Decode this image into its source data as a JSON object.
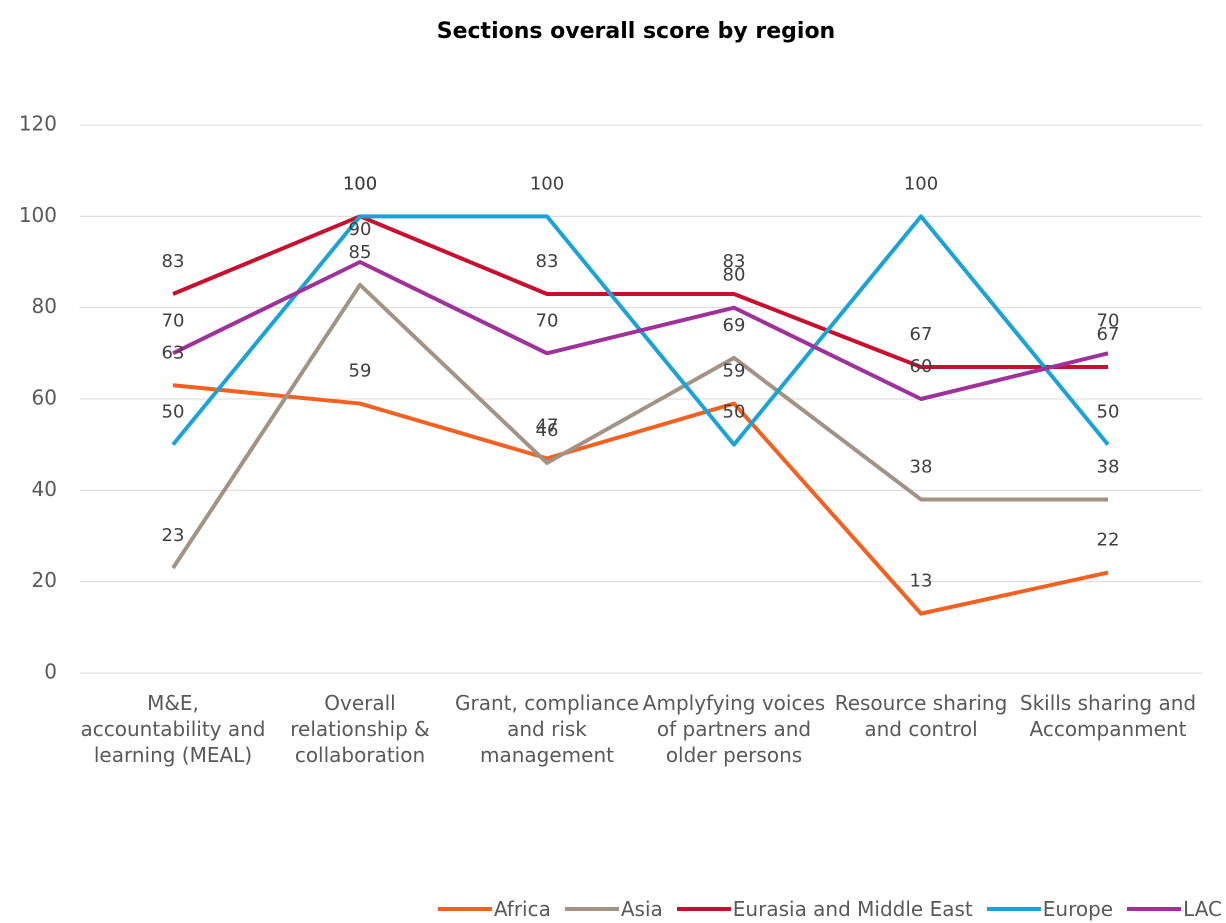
{
  "chart_data": {
    "type": "line",
    "title": "Sections overall score by region",
    "categories": [
      "M&E, accountability and learning (MEAL)",
      "Overall relationship & collaboration",
      "Grant, compliance and risk management",
      "Amplyfying voices of partners and older persons",
      "Resource sharing and control",
      "Skills sharing and Accompanment"
    ],
    "series": [
      {
        "name": "Africa",
        "color": "#f26122",
        "values": [
          63,
          59,
          47,
          59,
          13,
          22
        ]
      },
      {
        "name": "Asia",
        "color": "#a39382",
        "values": [
          23,
          85,
          46,
          69,
          38,
          38
        ]
      },
      {
        "name": "Eurasia and Middle East",
        "color": "#c8102e",
        "values": [
          83,
          100,
          83,
          83,
          67,
          67
        ]
      },
      {
        "name": "Europe",
        "color": "#1ba3d8",
        "values": [
          50,
          100,
          100,
          50,
          100,
          50
        ]
      },
      {
        "name": "LAC",
        "color": "#a0309a",
        "values": [
          70,
          90,
          70,
          80,
          60,
          70
        ]
      }
    ],
    "ylim": [
      0,
      120
    ],
    "yticks": [
      0,
      20,
      40,
      60,
      80,
      100,
      120
    ],
    "grid": true,
    "legend": "bottom-right"
  }
}
